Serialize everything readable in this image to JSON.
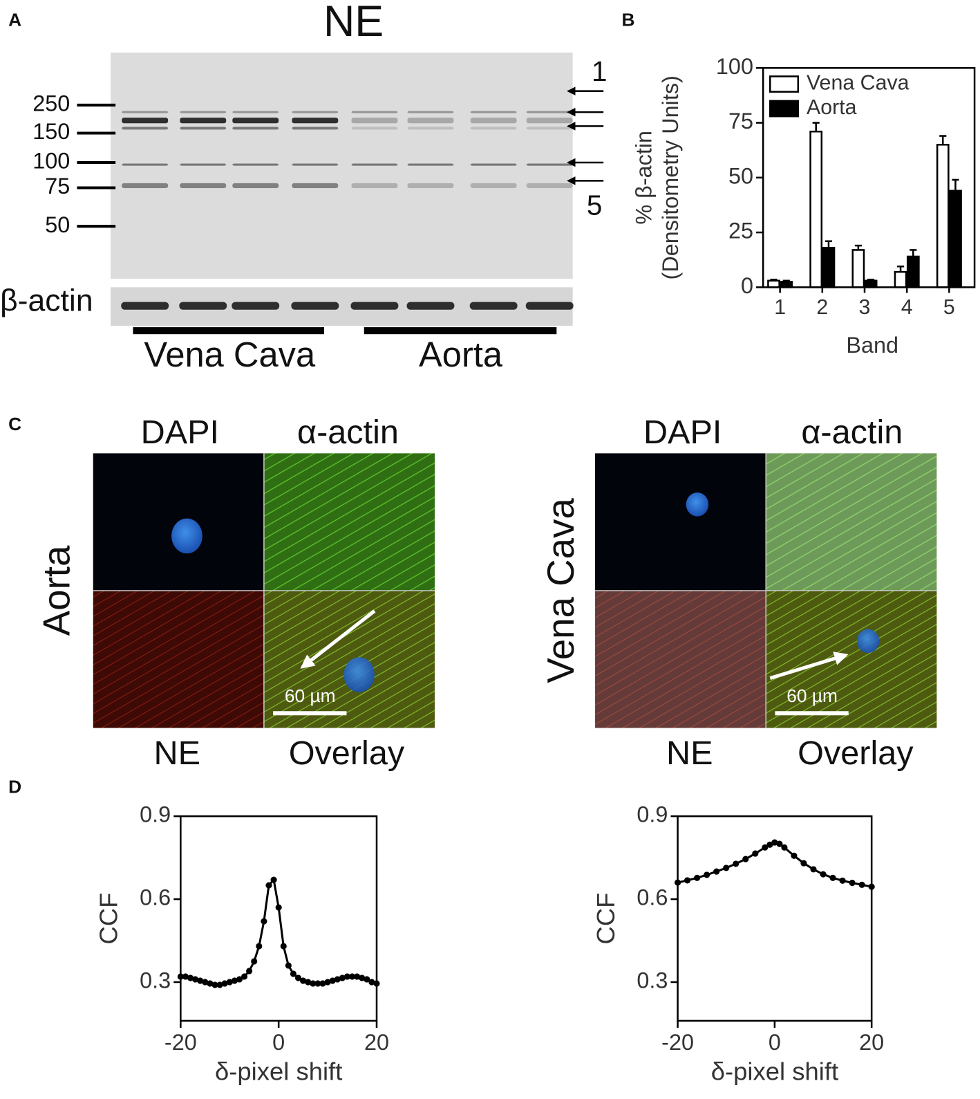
{
  "panel_labels": [
    "A",
    "B",
    "C",
    "D"
  ],
  "blot": {
    "title": "NE",
    "markers": [
      250,
      150,
      100,
      75,
      50
    ],
    "band_first": "1",
    "band_last": "5",
    "loading_control": "β-actin",
    "groups": [
      "Vena Cava",
      "Aorta"
    ]
  },
  "micrographs": [
    {
      "row_label": "Aorta",
      "top": [
        "DAPI",
        "α-actin"
      ],
      "bottom": [
        "NE",
        "Overlay"
      ],
      "scale_bar": "60 µm"
    },
    {
      "row_label": "Vena Cava",
      "top": [
        "DAPI",
        "α-actin"
      ],
      "bottom": [
        "NE",
        "Overlay"
      ],
      "scale_bar": "60 µm"
    }
  ],
  "chart_data": [
    {
      "type": "bar",
      "categories": [
        "1",
        "2",
        "3",
        "4",
        "5"
      ],
      "xlabel": "Band",
      "ylabel": [
        "% β-actin",
        "(Densitometry Units)"
      ],
      "ylim": [
        0,
        100
      ],
      "yticks": [
        0,
        25,
        50,
        75,
        100
      ],
      "legend": "upper left",
      "series": [
        {
          "name": "Vena Cava",
          "color": "#ffffff",
          "values": [
            3,
            71,
            17,
            7,
            65
          ],
          "errors": [
            0.5,
            4,
            2,
            2.5,
            4
          ]
        },
        {
          "name": "Aorta",
          "color": "#000000",
          "values": [
            2.5,
            18,
            3,
            14,
            44
          ],
          "errors": [
            0.5,
            3,
            0.5,
            3,
            5
          ]
        }
      ]
    },
    {
      "type": "line",
      "xlabel": "δ-pixel shift",
      "ylabel": "CCF",
      "xlim": [
        -20,
        20
      ],
      "ylim": [
        0.16,
        0.9
      ],
      "xticks": [
        -20,
        0,
        20
      ],
      "yticks": [
        0.3,
        0.6,
        0.9
      ],
      "series": [
        {
          "color": "#000000",
          "x": [
            -20,
            -19,
            -18,
            -17,
            -16,
            -15,
            -14,
            -13,
            -12,
            -11,
            -10,
            -9,
            -8,
            -7,
            -6,
            -5,
            -4,
            -3,
            -2,
            -1,
            0,
            1,
            2,
            3,
            4,
            5,
            6,
            7,
            8,
            9,
            10,
            11,
            12,
            13,
            14,
            15,
            16,
            17,
            18,
            19,
            20
          ],
          "values": [
            0.32,
            0.32,
            0.315,
            0.31,
            0.305,
            0.3,
            0.295,
            0.29,
            0.29,
            0.295,
            0.3,
            0.305,
            0.31,
            0.32,
            0.34,
            0.375,
            0.43,
            0.52,
            0.65,
            0.67,
            0.57,
            0.43,
            0.36,
            0.33,
            0.315,
            0.305,
            0.3,
            0.295,
            0.295,
            0.295,
            0.3,
            0.305,
            0.31,
            0.315,
            0.32,
            0.32,
            0.32,
            0.315,
            0.31,
            0.3,
            0.295
          ]
        }
      ]
    },
    {
      "type": "line",
      "xlabel": "δ-pixel shift",
      "ylabel": "CCF",
      "xlim": [
        -20,
        20
      ],
      "ylim": [
        0.16,
        0.9
      ],
      "xticks": [
        -20,
        0,
        20
      ],
      "yticks": [
        0.3,
        0.6,
        0.9
      ],
      "series": [
        {
          "color": "#000000",
          "x": [
            -20,
            -18,
            -16,
            -14,
            -12,
            -10,
            -8,
            -6,
            -4,
            -2,
            -1,
            0,
            1,
            2,
            4,
            6,
            8,
            10,
            12,
            14,
            16,
            18,
            20
          ],
          "values": [
            0.66,
            0.668,
            0.677,
            0.688,
            0.7,
            0.713,
            0.728,
            0.745,
            0.765,
            0.787,
            0.797,
            0.805,
            0.8,
            0.787,
            0.757,
            0.73,
            0.708,
            0.69,
            0.677,
            0.667,
            0.659,
            0.652,
            0.645
          ]
        }
      ]
    }
  ]
}
